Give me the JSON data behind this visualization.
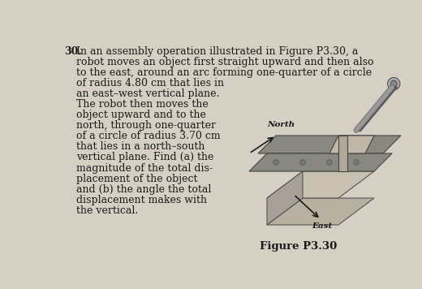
{
  "background_color": "#d6cfc4",
  "text_color": "#1a1a1a",
  "problem_number": "30.",
  "problem_text_lines": [
    "In an assembly operation illustrated in Figure P3.30, a",
    "robot moves an object first straight upward and then also",
    "to the east, around an arc forming one-quarter of a circle",
    "of radius 4.80 cm that lies in",
    "an east–west vertical plane.",
    "The robot then moves the",
    "object upward and to the",
    "north, through one-quarter",
    "of a circle of radius 3.70 cm",
    "that lies in a north–south",
    "vertical plane. Find (a) the",
    "magnitude of the total dis-",
    "placement of the object",
    "and (b) the angle the total",
    "displacement makes with",
    "the vertical."
  ],
  "figure_label": "Figure P3.30",
  "north_label": "North",
  "east_label": "East",
  "fig_width": 5.2,
  "fig_height": 3.56,
  "dpi": 100
}
